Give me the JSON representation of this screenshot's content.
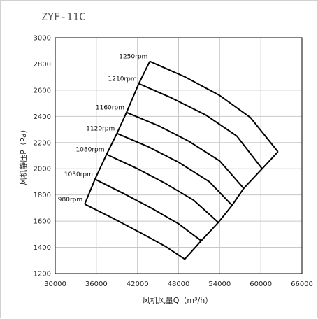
{
  "chart_data": {
    "type": "line",
    "title": "ZYF-11C",
    "xlabel": "风机风量Q（m³/h）",
    "ylabel": "风机静压P（Pa）",
    "xlim": [
      30000,
      66000
    ],
    "ylim": [
      1200,
      3000
    ],
    "x_ticks": [
      30000,
      36000,
      42000,
      48000,
      54000,
      60000,
      66000
    ],
    "y_ticks": [
      1200,
      1400,
      1600,
      1800,
      2000,
      2200,
      2400,
      2600,
      2800,
      3000
    ],
    "grid": true,
    "series": [
      {
        "name": "980rpm",
        "x": [
          34300,
          38500,
          42500,
          46000,
          48900
        ],
        "y": [
          1730,
          1620,
          1510,
          1410,
          1310
        ]
      },
      {
        "name": "1030rpm",
        "x": [
          35800,
          40000,
          44000,
          48000,
          51300
        ],
        "y": [
          1920,
          1810,
          1700,
          1580,
          1450
        ]
      },
      {
        "name": "1080rpm",
        "x": [
          37500,
          42000,
          46000,
          50200,
          53800
        ],
        "y": [
          2110,
          2000,
          1890,
          1760,
          1590
        ]
      },
      {
        "name": "1120rpm",
        "x": [
          39000,
          43500,
          48000,
          52500,
          55800
        ],
        "y": [
          2270,
          2170,
          2050,
          1900,
          1720
        ]
      },
      {
        "name": "1160rpm",
        "x": [
          40400,
          45000,
          49500,
          54000,
          57500
        ],
        "y": [
          2430,
          2330,
          2210,
          2060,
          1850
        ]
      },
      {
        "name": "1210rpm",
        "x": [
          42200,
          47000,
          52000,
          56500,
          60200
        ],
        "y": [
          2650,
          2540,
          2410,
          2250,
          2000
        ]
      },
      {
        "name": "1250rpm",
        "x": [
          43800,
          49000,
          54000,
          58500,
          62500
        ],
        "y": [
          2820,
          2700,
          2560,
          2390,
          2130
        ]
      }
    ],
    "colors": {
      "curve": "#000000",
      "grid": "#c8c8c8",
      "title": "#555555"
    }
  }
}
